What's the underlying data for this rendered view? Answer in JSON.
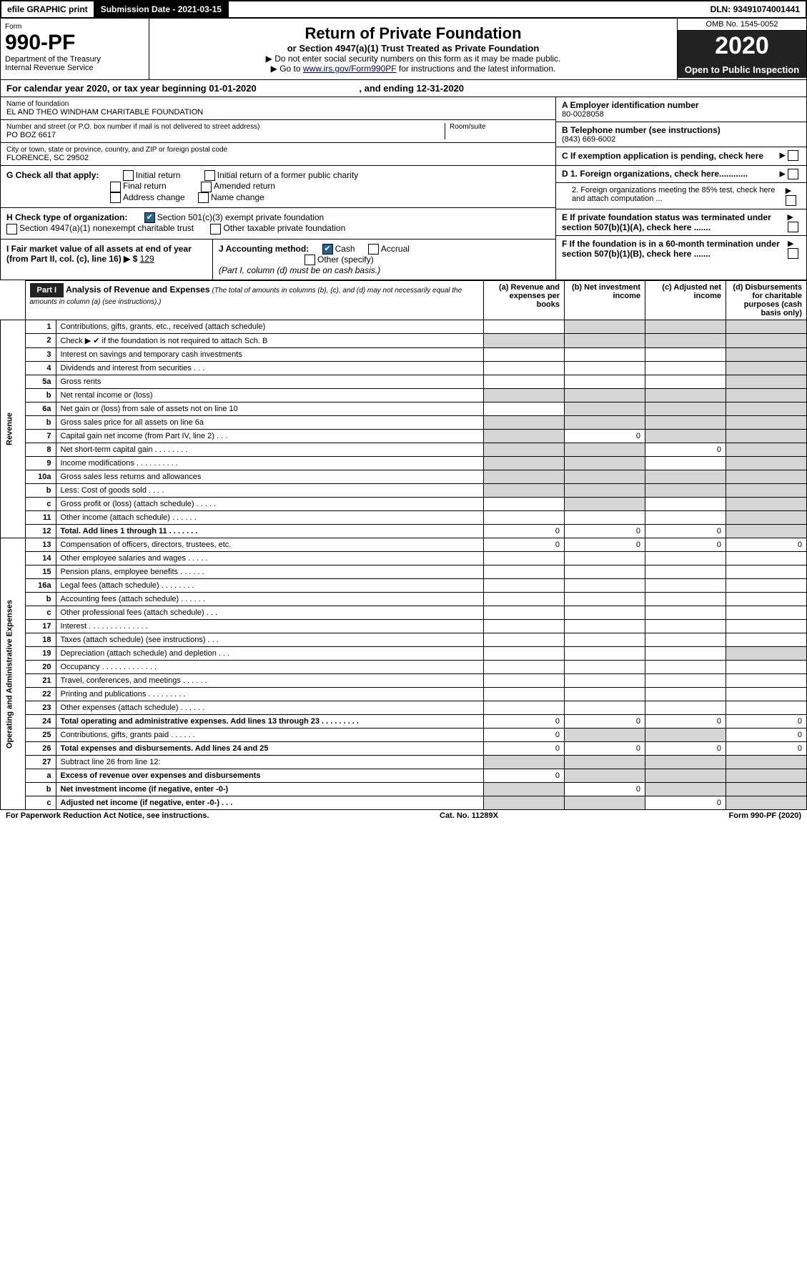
{
  "topbar": {
    "efile": "efile GRAPHIC print",
    "subdate_lbl": "Submission Date - ",
    "subdate": "2021-03-15",
    "dln_lbl": "DLN: ",
    "dln": "93491074001441"
  },
  "header": {
    "form_lbl": "Form",
    "form_no": "990-PF",
    "dept": "Department of the Treasury\nInternal Revenue Service",
    "title": "Return of Private Foundation",
    "subtitle": "or Section 4947(a)(1) Trust Treated as Private Foundation",
    "line1": "▶ Do not enter social security numbers on this form as it may be made public.",
    "line2_a": "▶ Go to ",
    "line2_link": "www.irs.gov/Form990PF",
    "line2_b": " for instructions and the latest information.",
    "omb": "OMB No. 1545-0052",
    "year": "2020",
    "open": "Open to Public Inspection"
  },
  "cal": {
    "a": "For calendar year 2020, or tax year beginning ",
    "b": "01-01-2020",
    "c": " , and ending ",
    "d": "12-31-2020"
  },
  "org": {
    "name_lbl": "Name of foundation",
    "name": "EL AND THEO WINDHAM CHARITABLE FOUNDATION",
    "street_lbl": "Number and street (or P.O. box number if mail is not delivered to street address)",
    "street": "PO BOZ 6617",
    "room_lbl": "Room/suite",
    "city_lbl": "City or town, state or province, country, and ZIP or foreign postal code",
    "city": "FLORENCE, SC  29502",
    "ein_lbl": "A Employer identification number",
    "ein": "80-0028058",
    "tel_lbl": "B Telephone number (see instructions)",
    "tel": "(843) 669-6002",
    "c_lbl": "C If exemption application is pending, check here",
    "d1": "D 1. Foreign organizations, check here............",
    "d2": "2. Foreign organizations meeting the 85% test, check here and attach computation ...",
    "e": "E  If private foundation status was terminated under section 507(b)(1)(A), check here .......",
    "f": "F  If the foundation is in a 60-month termination under section 507(b)(1)(B), check here .......",
    "g_lbl": "G Check all that apply:",
    "g_opts": [
      "Initial return",
      "Final return",
      "Address change",
      "Initial return of a former public charity",
      "Amended return",
      "Name change"
    ],
    "h_lbl": "H Check type of organization:",
    "h1": "Section 501(c)(3) exempt private foundation",
    "h2": "Section 4947(a)(1) nonexempt charitable trust",
    "h3": "Other taxable private foundation",
    "i_lbl": "I Fair market value of all assets at end of year (from Part II, col. (c), line 16) ▶ $",
    "i_val": "129",
    "j_lbl": "J Accounting method:",
    "j_cash": "Cash",
    "j_accrual": "Accrual",
    "j_other": "Other (specify)",
    "j_note": "(Part I, column (d) must be on cash basis.)"
  },
  "part1": {
    "label": "Part I",
    "title": "Analysis of Revenue and Expenses",
    "note": "(The total of amounts in columns (b), (c), and (d) may not necessarily equal the amounts in column (a) (see instructions).)",
    "col_a": "(a)  Revenue and expenses per books",
    "col_b": "(b)  Net investment income",
    "col_c": "(c)  Adjusted net income",
    "col_d": "(d)  Disbursements for charitable purposes (cash basis only)",
    "rev_label": "Revenue",
    "exp_label": "Operating and Administrative Expenses",
    "rows": [
      {
        "n": "1",
        "t": "Contributions, gifts, grants, etc., received (attach schedule)",
        "a": "",
        "b": "g",
        "c": "g",
        "d": "g"
      },
      {
        "n": "2",
        "t": "Check ▶ ✔ if the foundation is not required to attach Sch. B",
        "a": "g",
        "b": "g",
        "c": "g",
        "d": "g"
      },
      {
        "n": "3",
        "t": "Interest on savings and temporary cash investments",
        "a": "",
        "b": "",
        "c": "",
        "d": "g"
      },
      {
        "n": "4",
        "t": "Dividends and interest from securities   .   .   .",
        "a": "",
        "b": "",
        "c": "",
        "d": "g"
      },
      {
        "n": "5a",
        "t": "Gross rents",
        "a": "",
        "b": "",
        "c": "",
        "d": "g"
      },
      {
        "n": "b",
        "t": "Net rental income or (loss)",
        "a": "g",
        "b": "g",
        "c": "g",
        "d": "g"
      },
      {
        "n": "6a",
        "t": "Net gain or (loss) from sale of assets not on line 10",
        "a": "",
        "b": "g",
        "c": "g",
        "d": "g"
      },
      {
        "n": "b",
        "t": "Gross sales price for all assets on line 6a",
        "a": "g",
        "b": "g",
        "c": "g",
        "d": "g"
      },
      {
        "n": "7",
        "t": "Capital gain net income (from Part IV, line 2)   .   .   .",
        "a": "g",
        "b": "0",
        "c": "g",
        "d": "g"
      },
      {
        "n": "8",
        "t": "Net short-term capital gain   .   .   .   .   .   .   .   .",
        "a": "g",
        "b": "g",
        "c": "0",
        "d": "g"
      },
      {
        "n": "9",
        "t": "Income modifications  .   .   .   .   .   .   .   .   .   .",
        "a": "g",
        "b": "g",
        "c": "",
        "d": "g"
      },
      {
        "n": "10a",
        "t": "Gross sales less returns and allowances",
        "a": "g",
        "b": "g",
        "c": "g",
        "d": "g"
      },
      {
        "n": "b",
        "t": "Less: Cost of goods sold   .   .   .   .",
        "a": "g",
        "b": "g",
        "c": "g",
        "d": "g"
      },
      {
        "n": "c",
        "t": "Gross profit or (loss) (attach schedule)   .   .   .   .   .",
        "a": "",
        "b": "g",
        "c": "",
        "d": "g"
      },
      {
        "n": "11",
        "t": "Other income (attach schedule)    .   .   .   .   .   .",
        "a": "",
        "b": "",
        "c": "",
        "d": "g"
      },
      {
        "n": "12",
        "t": "Total. Add lines 1 through 11    .   .   .   .   .   .   .",
        "a": "0",
        "b": "0",
        "c": "0",
        "d": "g",
        "bold": true
      },
      {
        "n": "13",
        "t": "Compensation of officers, directors, trustees, etc.",
        "a": "0",
        "b": "0",
        "c": "0",
        "d": "0"
      },
      {
        "n": "14",
        "t": "Other employee salaries and wages    .   .   .   .   .",
        "a": "",
        "b": "",
        "c": "",
        "d": ""
      },
      {
        "n": "15",
        "t": "Pension plans, employee benefits    .   .   .   .   .   .",
        "a": "",
        "b": "",
        "c": "",
        "d": ""
      },
      {
        "n": "16a",
        "t": "Legal fees (attach schedule)  .   .   .   .   .   .   .   .",
        "a": "",
        "b": "",
        "c": "",
        "d": ""
      },
      {
        "n": "b",
        "t": "Accounting fees (attach schedule)   .   .   .   .   .   .",
        "a": "",
        "b": "",
        "c": "",
        "d": ""
      },
      {
        "n": "c",
        "t": "Other professional fees (attach schedule)    .   .   .",
        "a": "",
        "b": "",
        "c": "",
        "d": ""
      },
      {
        "n": "17",
        "t": "Interest  .   .   .   .   .   .   .   .   .   .   .   .   .   .",
        "a": "",
        "b": "",
        "c": "",
        "d": ""
      },
      {
        "n": "18",
        "t": "Taxes (attach schedule) (see instructions)    .   .   .",
        "a": "",
        "b": "",
        "c": "",
        "d": ""
      },
      {
        "n": "19",
        "t": "Depreciation (attach schedule) and depletion    .   .   .",
        "a": "",
        "b": "",
        "c": "",
        "d": "g"
      },
      {
        "n": "20",
        "t": "Occupancy  .   .   .   .   .   .   .   .   .   .   .   .   .",
        "a": "",
        "b": "",
        "c": "",
        "d": ""
      },
      {
        "n": "21",
        "t": "Travel, conferences, and meetings  .   .   .   .   .   .",
        "a": "",
        "b": "",
        "c": "",
        "d": ""
      },
      {
        "n": "22",
        "t": "Printing and publications  .   .   .   .   .   .   .   .   .",
        "a": "",
        "b": "",
        "c": "",
        "d": ""
      },
      {
        "n": "23",
        "t": "Other expenses (attach schedule)   .   .   .   .   .   .",
        "a": "",
        "b": "",
        "c": "",
        "d": ""
      },
      {
        "n": "24",
        "t": "Total operating and administrative expenses. Add lines 13 through 23   .   .   .   .   .   .   .   .   .",
        "a": "0",
        "b": "0",
        "c": "0",
        "d": "0",
        "bold": true
      },
      {
        "n": "25",
        "t": "Contributions, gifts, grants paid    .   .   .   .   .   .",
        "a": "0",
        "b": "g",
        "c": "g",
        "d": "0"
      },
      {
        "n": "26",
        "t": "Total expenses and disbursements. Add lines 24 and 25",
        "a": "0",
        "b": "0",
        "c": "0",
        "d": "0",
        "bold": true
      },
      {
        "n": "27",
        "t": "Subtract line 26 from line 12:",
        "a": "g",
        "b": "g",
        "c": "g",
        "d": "g"
      },
      {
        "n": "a",
        "t": "Excess of revenue over expenses and disbursements",
        "a": "0",
        "b": "g",
        "c": "g",
        "d": "g",
        "bold": true
      },
      {
        "n": "b",
        "t": "Net investment income (if negative, enter -0-)",
        "a": "g",
        "b": "0",
        "c": "g",
        "d": "g",
        "bold": true
      },
      {
        "n": "c",
        "t": "Adjusted net income (if negative, enter -0-)    .   .   .",
        "a": "g",
        "b": "g",
        "c": "0",
        "d": "g",
        "bold": true
      }
    ]
  },
  "footer": {
    "l": "For Paperwork Reduction Act Notice, see instructions.",
    "c": "Cat. No. 11289X",
    "r": "Form 990-PF (2020)"
  },
  "colors": {
    "gray": "#d5d5d5",
    "dark": "#222",
    "check": "#29648c"
  }
}
